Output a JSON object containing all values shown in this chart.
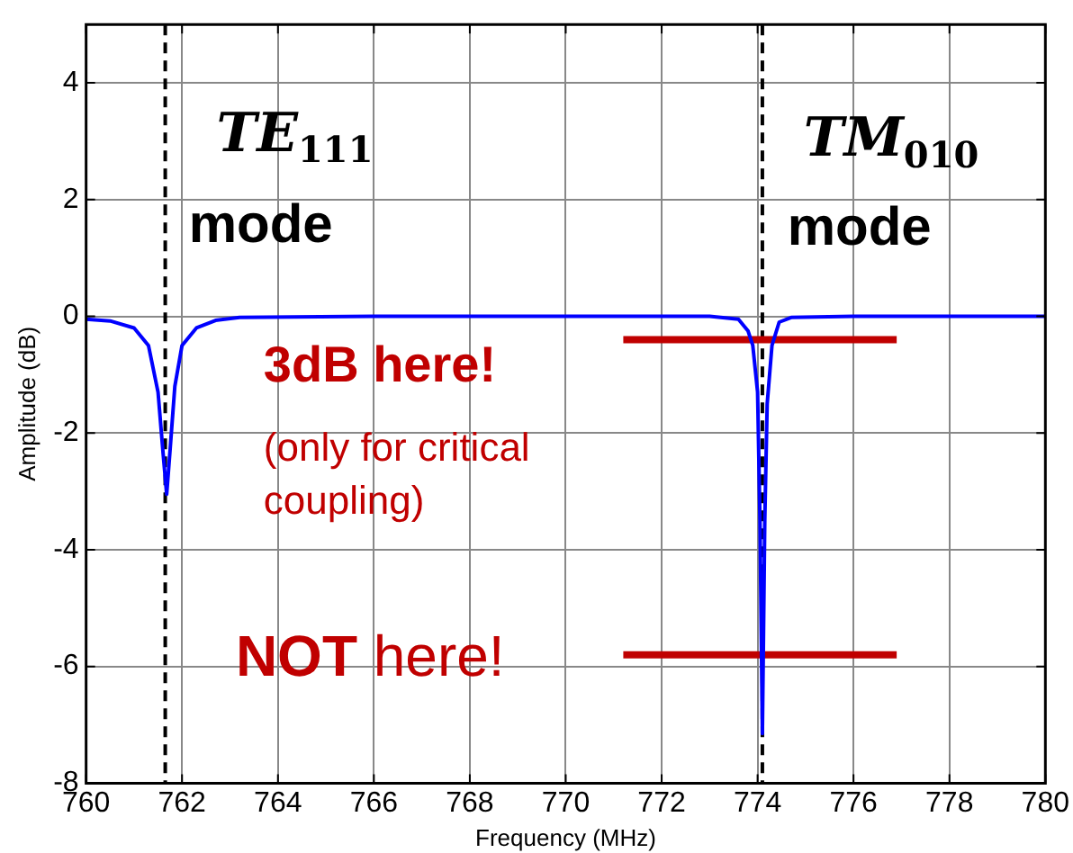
{
  "chart_data": {
    "type": "line",
    "xlabel": "Frequency (MHz)",
    "ylabel": "Amplitude (dB)",
    "xlim": [
      760,
      780
    ],
    "xticks": [
      760,
      762,
      764,
      766,
      768,
      770,
      772,
      774,
      776,
      778,
      780
    ],
    "ylim": [
      -8,
      5
    ],
    "yticks": [
      -8,
      -6,
      -4,
      -2,
      0,
      2,
      4
    ],
    "grid": true,
    "legend": false,
    "marker": "none",
    "series": [
      {
        "color": "#0000ff",
        "x": [
          760,
          760.5,
          761,
          761.3,
          761.5,
          761.6,
          761.68,
          761.75,
          761.85,
          762,
          762.3,
          762.7,
          763.2,
          766,
          770,
          773,
          773.6,
          773.8,
          773.9,
          774,
          774.05,
          774.1,
          774.15,
          774.2,
          774.3,
          774.45,
          774.7,
          776,
          780
        ],
        "values": [
          -0.05,
          -0.08,
          -0.2,
          -0.5,
          -1.3,
          -2.3,
          -3.05,
          -2.3,
          -1.2,
          -0.5,
          -0.2,
          -0.07,
          -0.02,
          0,
          0,
          0,
          -0.05,
          -0.25,
          -0.5,
          -1.3,
          -3.5,
          -7.15,
          -3.5,
          -1.5,
          -0.5,
          -0.1,
          -0.02,
          0,
          0
        ]
      },
      {
        "color": "#c00000",
        "x": [
          771.2,
          776.9
        ],
        "values": [
          -0.4,
          -0.4
        ]
      },
      {
        "color": "#c00000",
        "x": [
          771.2,
          776.9
        ],
        "values": [
          -5.8,
          -5.8
        ]
      }
    ],
    "ref_lines": [
      {
        "axis": "x",
        "value": 761.65,
        "color": "#000000",
        "line_style": "dashed"
      },
      {
        "axis": "x",
        "value": 774.1,
        "color": "#000000",
        "line_style": "dashed"
      }
    ],
    "annotations": [
      "TE$_{111}$",
      "mode",
      "TM$_{010}$",
      "mode",
      "3dB here!",
      "(only for critical",
      "coupling)",
      "NOT here!"
    ]
  }
}
